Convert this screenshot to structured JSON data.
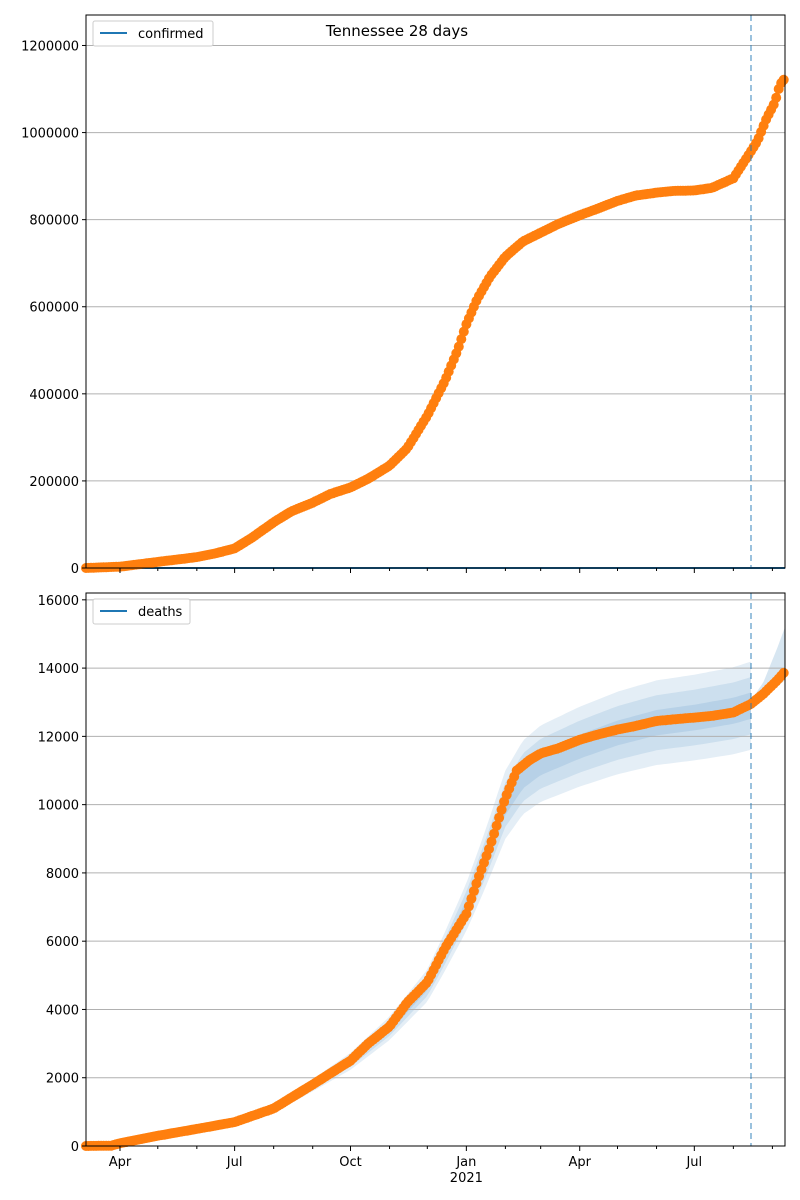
{
  "figure": {
    "title": "Tennessee 28 days",
    "vline_date": "2021-08-15"
  },
  "chart_data": [
    {
      "type": "scatter",
      "name": "confirmed",
      "legend": "confirmed",
      "legend_position": "top-left",
      "x_range": [
        "2020-03-05",
        "2021-09-11"
      ],
      "ylim": [
        0,
        1270000
      ],
      "yticks": [
        0,
        200000,
        400000,
        600000,
        800000,
        1000000,
        1200000
      ],
      "ytick_labels": [
        "0",
        "200000",
        "400000",
        "600000",
        "800000",
        "1000000",
        "1200000"
      ],
      "grid": "horizontal",
      "line_color": "#1f77b4",
      "marker_color": "#ff7f0e",
      "model_line": {
        "date": [
          "2020-03-05",
          "2021-09-11"
        ],
        "value": [
          0,
          0
        ]
      },
      "points": {
        "date": [
          "2020-03-05",
          "2020-04-01",
          "2020-05-01",
          "2020-06-01",
          "2020-06-15",
          "2020-07-01",
          "2020-07-15",
          "2020-08-01",
          "2020-08-15",
          "2020-09-01",
          "2020-09-15",
          "2020-10-01",
          "2020-10-15",
          "2020-11-01",
          "2020-11-15",
          "2020-12-01",
          "2020-12-15",
          "2020-12-25",
          "2021-01-01",
          "2021-01-10",
          "2021-01-20",
          "2021-02-01",
          "2021-02-15",
          "2021-03-01",
          "2021-03-15",
          "2021-04-01",
          "2021-04-15",
          "2021-05-01",
          "2021-05-15",
          "2021-06-01",
          "2021-06-15",
          "2021-07-01",
          "2021-07-15",
          "2021-08-01",
          "2021-08-10",
          "2021-08-20",
          "2021-08-27",
          "2021-09-03",
          "2021-09-07",
          "2021-09-11"
        ],
        "value": [
          0,
          3000,
          14000,
          25000,
          33000,
          45000,
          70000,
          105000,
          130000,
          150000,
          170000,
          185000,
          205000,
          235000,
          275000,
          350000,
          430000,
          500000,
          560000,
          620000,
          670000,
          715000,
          750000,
          770000,
          790000,
          810000,
          825000,
          843000,
          855000,
          862000,
          866000,
          867000,
          873000,
          895000,
          935000,
          980000,
          1030000,
          1070000,
          1110000,
          1125000
        ]
      }
    },
    {
      "type": "scatter",
      "name": "deaths",
      "legend": "deaths",
      "legend_position": "top-left",
      "x_range": [
        "2020-03-05",
        "2021-09-11"
      ],
      "ylim": [
        0,
        16200
      ],
      "yticks": [
        0,
        2000,
        4000,
        6000,
        8000,
        10000,
        12000,
        14000,
        16000
      ],
      "ytick_labels": [
        "0",
        "2000",
        "4000",
        "6000",
        "8000",
        "10000",
        "12000",
        "14000",
        "16000"
      ],
      "xtick_labels": [
        "Apr",
        "Jul",
        "Oct",
        "Jan",
        "Apr",
        "Jul"
      ],
      "xtick_dates": [
        "2020-04-01",
        "2020-07-01",
        "2020-10-01",
        "2021-01-01",
        "2021-04-01",
        "2021-07-01"
      ],
      "year_label": "2021",
      "grid": "horizontal",
      "line_color": "#1f77b4",
      "marker_color": "#ff7f0e",
      "band_color": "#1f77b4",
      "points": {
        "date": [
          "2020-03-05",
          "2020-03-25",
          "2020-04-01",
          "2020-05-01",
          "2020-06-01",
          "2020-07-01",
          "2020-08-01",
          "2020-09-01",
          "2020-10-01",
          "2020-10-15",
          "2020-11-01",
          "2020-11-15",
          "2020-12-01",
          "2020-12-15",
          "2021-01-01",
          "2021-01-10",
          "2021-01-20",
          "2021-02-01",
          "2021-02-10",
          "2021-02-20",
          "2021-03-01",
          "2021-03-15",
          "2021-04-01",
          "2021-04-15",
          "2021-05-01",
          "2021-05-15",
          "2021-06-01",
          "2021-06-15",
          "2021-07-01",
          "2021-07-15",
          "2021-08-01",
          "2021-08-15",
          "2021-08-25",
          "2021-09-05",
          "2021-09-11"
        ],
        "value": [
          0,
          10,
          80,
          300,
          500,
          700,
          1100,
          1800,
          2500,
          3000,
          3500,
          4200,
          4800,
          5800,
          6800,
          7800,
          8800,
          10200,
          11000,
          11300,
          11500,
          11650,
          11900,
          12050,
          12200,
          12300,
          12450,
          12500,
          12550,
          12600,
          12700,
          12950,
          13250,
          13650,
          13900
        ]
      },
      "model": {
        "date": [
          "2020-03-05",
          "2020-04-01",
          "2020-05-01",
          "2020-06-01",
          "2020-07-01",
          "2020-08-01",
          "2020-09-01",
          "2020-10-01",
          "2020-11-01",
          "2020-12-01",
          "2020-12-15",
          "2021-01-01",
          "2021-01-15",
          "2021-02-01",
          "2021-02-15",
          "2021-03-01",
          "2021-04-01",
          "2021-05-01",
          "2021-06-01",
          "2021-07-01",
          "2021-08-01",
          "2021-08-15"
        ],
        "median": [
          0,
          60,
          280,
          480,
          680,
          1080,
          1780,
          2480,
          3450,
          4700,
          5700,
          7000,
          8300,
          10000,
          10800,
          11200,
          11700,
          12100,
          12400,
          12550,
          12750,
          12900
        ]
      },
      "forecast": {
        "date": [
          "2021-08-15",
          "2021-08-25",
          "2021-09-05",
          "2021-09-11"
        ],
        "median": [
          12950,
          13300,
          13900,
          14300
        ],
        "upper": [
          13050,
          13600,
          14600,
          15200
        ],
        "lower": [
          12850,
          13100,
          13450,
          13650
        ]
      }
    }
  ]
}
